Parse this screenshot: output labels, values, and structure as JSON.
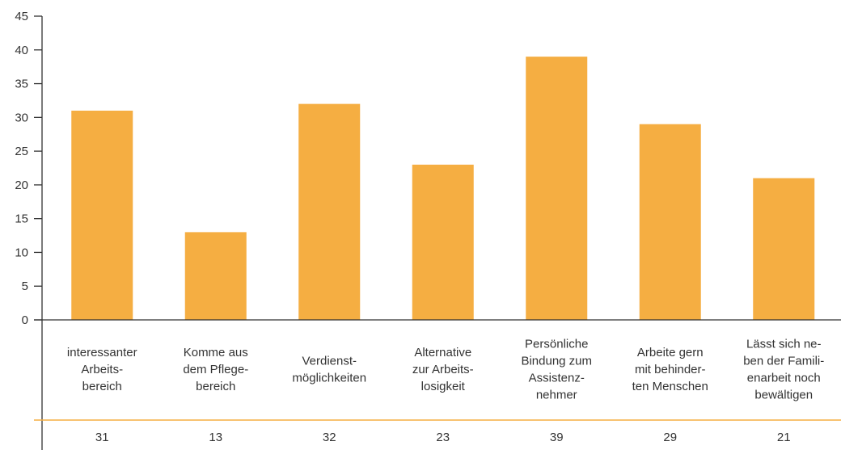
{
  "colors": {
    "bar": "#f5ae42",
    "axis": "#333333",
    "separator": "#f5ae42",
    "text": "#333333"
  },
  "chart_data": {
    "type": "bar",
    "title": "",
    "xlabel": "",
    "ylabel": "",
    "ylim": [
      0,
      45
    ],
    "yticks": [
      0,
      5,
      10,
      15,
      20,
      25,
      30,
      35,
      40,
      45
    ],
    "grid": false,
    "categories": [
      [
        "interessanter",
        "Arbeits-",
        "bereich"
      ],
      [
        "Komme aus",
        "dem Pflege-",
        "bereich"
      ],
      [
        "Verdienst-",
        "möglichkeiten"
      ],
      [
        "Alternative",
        "zur Arbeits-",
        "losigkeit"
      ],
      [
        "Persönliche",
        "Bindung zum",
        "Assistenz-",
        "nehmer"
      ],
      [
        "Arbeite gern",
        "mit behinder-",
        "ten Menschen"
      ],
      [
        "Lässt sich ne-",
        "ben der Famili-",
        "enarbeit noch",
        "bewältigen"
      ]
    ],
    "values": [
      31,
      13,
      32,
      23,
      39,
      29,
      21
    ],
    "value_labels": [
      "31",
      "13",
      "32",
      "23",
      "39",
      "29",
      "21"
    ]
  }
}
